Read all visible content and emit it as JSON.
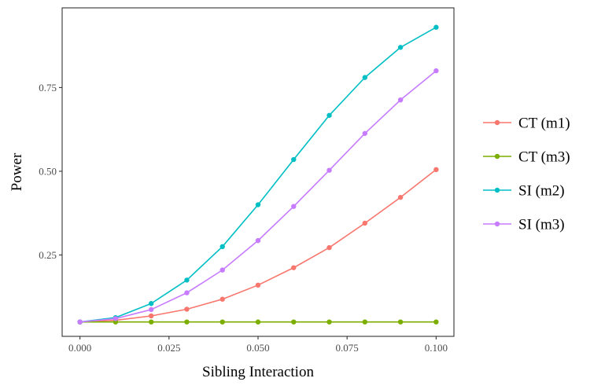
{
  "chart_data": {
    "type": "line",
    "xlabel": "Sibling Interaction",
    "ylabel": "Power",
    "x": [
      0.0,
      0.01,
      0.02,
      0.03,
      0.04,
      0.05,
      0.06,
      0.07,
      0.08,
      0.09,
      0.1
    ],
    "x_ticks": [
      0.0,
      0.025,
      0.05,
      0.075,
      0.1
    ],
    "x_tick_labels": [
      "0.000",
      "0.025",
      "0.050",
      "0.075",
      "0.100"
    ],
    "y_ticks": [
      0.25,
      0.5,
      0.75
    ],
    "y_tick_labels": [
      "0.25",
      "0.50",
      "0.75"
    ],
    "xlim": [
      -0.005,
      0.105
    ],
    "ylim": [
      0.007,
      0.988
    ],
    "grid": false,
    "legend_position": "right",
    "series": [
      {
        "name": "CT (m1)",
        "color": "#F8766D",
        "values": [
          0.05,
          0.055,
          0.068,
          0.088,
          0.118,
          0.16,
          0.212,
          0.272,
          0.345,
          0.422,
          0.505
        ]
      },
      {
        "name": "CT (m3)",
        "color": "#7CAE00",
        "values": [
          0.05,
          0.05,
          0.05,
          0.05,
          0.05,
          0.05,
          0.05,
          0.05,
          0.05,
          0.05,
          0.05
        ]
      },
      {
        "name": "SI (m2)",
        "color": "#00BFC4",
        "values": [
          0.05,
          0.063,
          0.105,
          0.175,
          0.275,
          0.4,
          0.535,
          0.667,
          0.78,
          0.87,
          0.93
        ]
      },
      {
        "name": "SI (m3)",
        "color": "#C77CFF",
        "values": [
          0.05,
          0.06,
          0.087,
          0.137,
          0.205,
          0.293,
          0.395,
          0.503,
          0.613,
          0.713,
          0.8
        ]
      }
    ]
  }
}
